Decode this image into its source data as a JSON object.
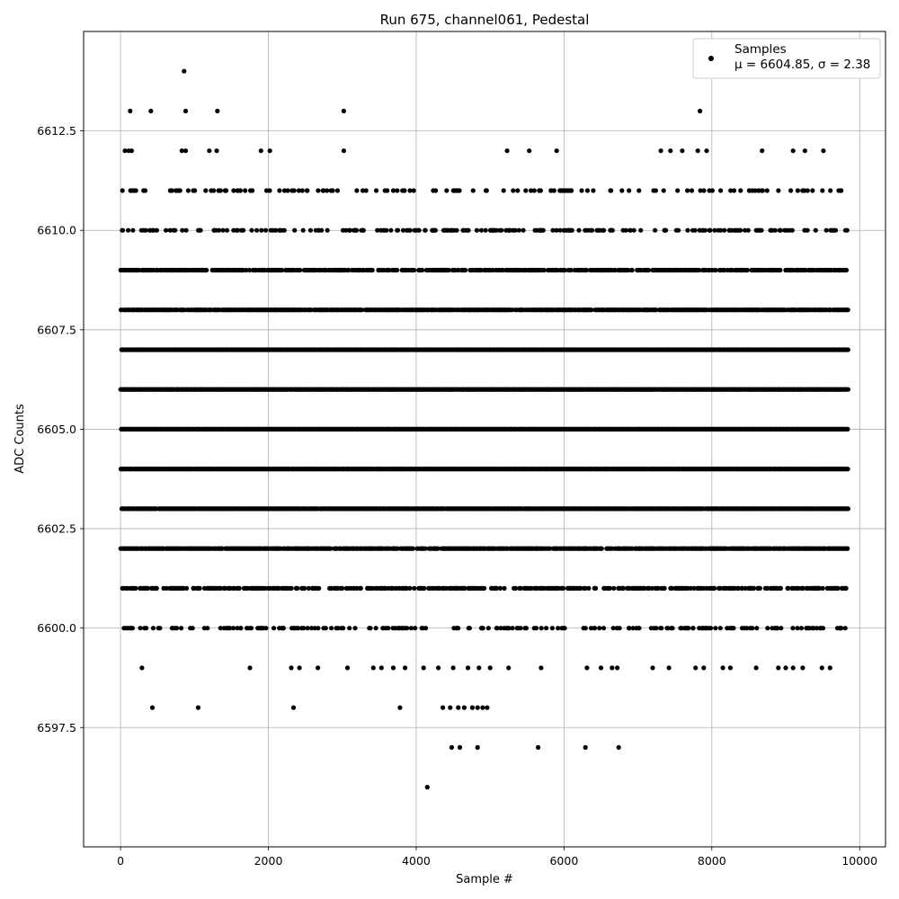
{
  "chart_data": {
    "type": "scatter",
    "title": "Run 675, channel061, Pedestal",
    "xlabel": "Sample #",
    "ylabel": "ADC Counts",
    "xlim": [
      -500,
      10350
    ],
    "ylim": [
      6594.5,
      6615.0
    ],
    "xticks": [
      0,
      2000,
      4000,
      6000,
      8000,
      10000
    ],
    "yticks": [
      6597.5,
      6600.0,
      6602.5,
      6605.0,
      6607.5,
      6610.0,
      6612.5
    ],
    "xtick_labels": [
      "0",
      "2000",
      "4000",
      "6000",
      "8000",
      "10000"
    ],
    "ytick_labels": [
      "6597.5",
      "6600.0",
      "6602.5",
      "6605.0",
      "6607.5",
      "6610.0",
      "6612.5"
    ],
    "grid": true,
    "legend": {
      "placement": "top-right",
      "label": "Samples",
      "stats": "μ = 6604.85, σ = 2.38"
    },
    "series": [
      {
        "name": "Samples",
        "color": "#000000",
        "summary": {
          "n_samples": 9850,
          "x_range": [
            0,
            9850
          ],
          "mean": 6604.85,
          "std": 2.38
        },
        "points": [
          [
            860,
            6614
          ],
          [
            130,
            6613
          ],
          [
            410,
            6613
          ],
          [
            880,
            6613
          ],
          [
            1310,
            6613
          ],
          [
            3020,
            6613
          ],
          [
            7840,
            6613
          ],
          [
            60,
            6612
          ],
          [
            110,
            6612
          ],
          [
            150,
            6612
          ],
          [
            830,
            6612
          ],
          [
            880,
            6612
          ],
          [
            1200,
            6612
          ],
          [
            1300,
            6612
          ],
          [
            1900,
            6612
          ],
          [
            2020,
            6612
          ],
          [
            3020,
            6612
          ],
          [
            5230,
            6612
          ],
          [
            5530,
            6612
          ],
          [
            5900,
            6612
          ],
          [
            7310,
            6612
          ],
          [
            7440,
            6612
          ],
          [
            7600,
            6612
          ],
          [
            7810,
            6612
          ],
          [
            7930,
            6612
          ],
          [
            8680,
            6612
          ],
          [
            9100,
            6612
          ],
          [
            9260,
            6612
          ],
          [
            9510,
            6612
          ],
          [
            4150,
            6596
          ],
          [
            4480,
            6597
          ],
          [
            4590,
            6597
          ],
          [
            4830,
            6597
          ],
          [
            5650,
            6597
          ],
          [
            6290,
            6597
          ],
          [
            6740,
            6597
          ],
          [
            430,
            6598
          ],
          [
            1050,
            6598
          ],
          [
            2340,
            6598
          ],
          [
            3780,
            6598
          ],
          [
            4360,
            6598
          ],
          [
            4460,
            6598
          ],
          [
            4570,
            6598
          ],
          [
            4650,
            6598
          ],
          [
            4760,
            6598
          ],
          [
            4830,
            6598
          ],
          [
            4900,
            6598
          ],
          [
            4960,
            6598
          ],
          [
            290,
            6599
          ],
          [
            1750,
            6599
          ],
          [
            2310,
            6599
          ],
          [
            2420,
            6599
          ],
          [
            2670,
            6599
          ],
          [
            3070,
            6599
          ],
          [
            3420,
            6599
          ],
          [
            3530,
            6599
          ],
          [
            3690,
            6599
          ],
          [
            3850,
            6599
          ],
          [
            4100,
            6599
          ],
          [
            4300,
            6599
          ],
          [
            4500,
            6599
          ],
          [
            4700,
            6599
          ],
          [
            4850,
            6599
          ],
          [
            5000,
            6599
          ],
          [
            5250,
            6599
          ],
          [
            5690,
            6599
          ],
          [
            6310,
            6599
          ],
          [
            6500,
            6599
          ],
          [
            6650,
            6599
          ],
          [
            6720,
            6599
          ],
          [
            7200,
            6599
          ],
          [
            7420,
            6599
          ],
          [
            7780,
            6599
          ],
          [
            7890,
            6599
          ],
          [
            8150,
            6599
          ],
          [
            8250,
            6599
          ],
          [
            8600,
            6599
          ],
          [
            8900,
            6599
          ],
          [
            9000,
            6599
          ],
          [
            9100,
            6599
          ],
          [
            9230,
            6599
          ],
          [
            9490,
            6599
          ],
          [
            9600,
            6599
          ]
        ],
        "level_bands": [
          {
            "y": 6600,
            "density": 0.25
          },
          {
            "y": 6601,
            "density": 0.5
          },
          {
            "y": 6602,
            "density": 0.8
          },
          {
            "y": 6603,
            "density": 0.95
          },
          {
            "y": 6604,
            "density": 1.0
          },
          {
            "y": 6605,
            "density": 1.0
          },
          {
            "y": 6606,
            "density": 1.0
          },
          {
            "y": 6607,
            "density": 1.0
          },
          {
            "y": 6608,
            "density": 0.85
          },
          {
            "y": 6609,
            "density": 0.6
          },
          {
            "y": 6610,
            "density": 0.25
          },
          {
            "y": 6611,
            "density": 0.15
          }
        ]
      }
    ]
  }
}
